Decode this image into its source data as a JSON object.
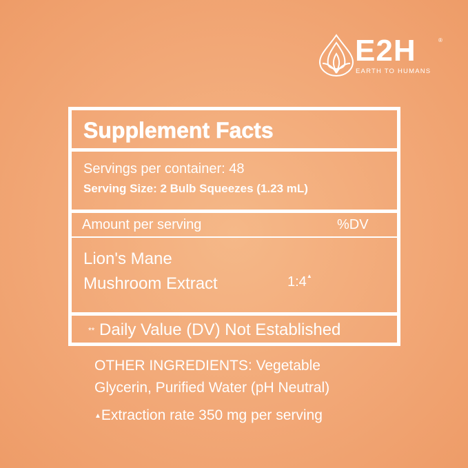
{
  "brand": {
    "name": "E2H",
    "registered": "®",
    "tagline": "EARTH TO HUMANS"
  },
  "facts": {
    "title": "Supplement Facts",
    "servings_per_container": "Servings per container: 48",
    "serving_size": "Serving Size: 2 Bulb Squeezes (1.23 mL)",
    "amount_label": "Amount per serving",
    "dv_label": "%DV",
    "ingredient_line1": "Lion's Mane",
    "ingredient_line2": "Mushroom Extract",
    "ratio": "1:4",
    "ratio_mark": "▲",
    "footnote_stars": "**",
    "footnote": "Daily Value (DV) Not Established"
  },
  "other": {
    "line1": "OTHER INGREDIENTS: Vegetable",
    "line2": "Glycerin, Purified Water (pH Neutral)",
    "mark": "▲",
    "line3": "Extraction rate 350 mg per serving"
  }
}
